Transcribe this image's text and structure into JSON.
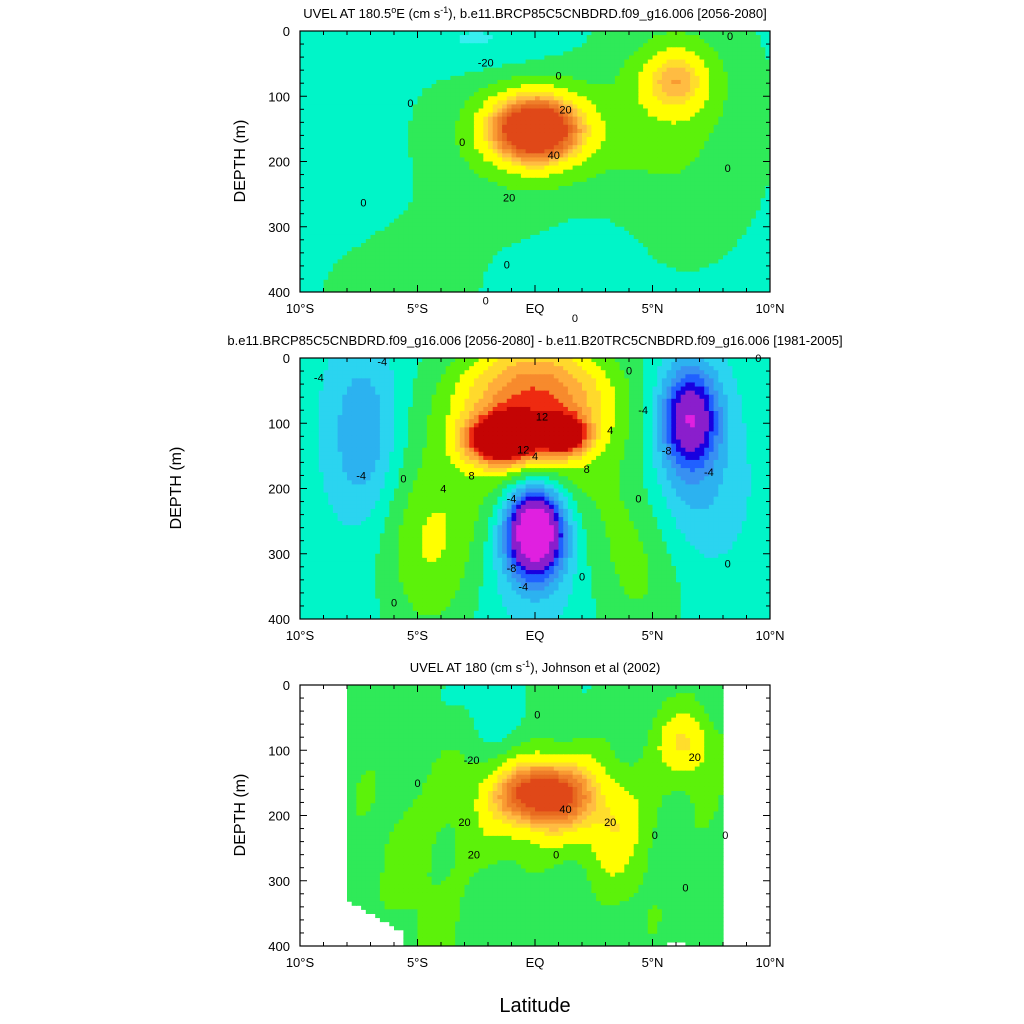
{
  "figure": {
    "xlabel": "Latitude",
    "xticks": [
      {
        "lat": -10,
        "label": "10°S"
      },
      {
        "lat": -5,
        "label": "5°S"
      },
      {
        "lat": 0,
        "label": "EQ"
      },
      {
        "lat": 5,
        "label": "5°N"
      },
      {
        "lat": 10,
        "label": "10°N"
      }
    ],
    "yticks": [
      0,
      100,
      200,
      300,
      400
    ]
  },
  "chart_data": [
    {
      "type": "heatmap",
      "title": "UVEL AT 180.5°E (cm s-1), b.e11.BRCP85C5CNBDRD.f09_g16.006 [2056-2080]",
      "title_parts": {
        "pre": "UVEL AT 180.5",
        "deg": "o",
        "mid": "E (cm s",
        "sup": "-1",
        "post": "), b.e11.BRCP85C5CNBDRD.f09_g16.006 [2056-2080]"
      },
      "xlabel": "Latitude",
      "ylabel": "DEPTH (m)",
      "xlim": [
        -10,
        10
      ],
      "ylim": [
        400,
        0
      ],
      "contour_interval": 10,
      "max": {
        "lat": 0,
        "depth": 150,
        "value": 55
      },
      "contour_labels": [
        "-20",
        "0",
        "0",
        "0",
        "0",
        "0",
        "0",
        "0",
        "0",
        "0",
        "20",
        "40",
        "20"
      ]
    },
    {
      "type": "heatmap",
      "title": "b.e11.BRCP85C5CNBDRD.f09_g16.006 [2056-2080] - b.e11.B20TRC5CNBDRD.f09_g16.006 [1981-2005]",
      "xlabel": "Latitude",
      "ylabel": "DEPTH (m)",
      "xlim": [
        -10,
        10
      ],
      "ylim": [
        400,
        0
      ],
      "contour_interval": 2,
      "max": {
        "lat": -1.5,
        "depth": 125,
        "value": 16
      },
      "min": {
        "lat": 0,
        "depth": 260,
        "value": -18
      },
      "contour_labels": [
        "-4",
        "-4",
        "0",
        "4",
        "8",
        "12",
        "12",
        "4",
        "-4",
        "4",
        "8",
        "0",
        "-4",
        "-8",
        "0",
        "-4",
        "-8",
        "-4",
        "0",
        "0",
        "0",
        "-4",
        "0"
      ]
    },
    {
      "type": "heatmap",
      "title": "UVEL AT 180 (cm s-1), Johnson et al (2002)",
      "title_parts": {
        "pre": "UVEL AT 180 (cm s",
        "sup": "-1",
        "post": "), Johnson et al (2002)"
      },
      "xlabel": "Latitude",
      "ylabel": "DEPTH (m)",
      "xlim": [
        -10,
        10
      ],
      "ylim": [
        400,
        0
      ],
      "data_lat_range": [
        -8,
        8
      ],
      "contour_interval": 10,
      "max": {
        "lat": 0.3,
        "depth": 165,
        "value": 45
      },
      "contour_labels": [
        "0",
        "-20",
        "40",
        "20",
        "20",
        "20",
        "20",
        "0",
        "0",
        "0",
        "0",
        "0"
      ]
    }
  ],
  "colors": {
    "levels_vel": [
      -30,
      -20,
      -10,
      0,
      10,
      20,
      25,
      30,
      35,
      40,
      45,
      50
    ],
    "palette_vel": [
      "#2fd9f2",
      "#37eef0",
      "#00f5c8",
      "#2fea58",
      "#5cf20a",
      "#ffff00",
      "#ffdd2c",
      "#ffbc42",
      "#f99b32",
      "#ef7f2a",
      "#e8691f",
      "#e04818"
    ],
    "levels_diff": [
      -18,
      -14,
      -12,
      -10,
      -8,
      -6,
      -4,
      -2,
      0,
      2,
      4,
      6,
      8,
      10,
      12,
      14
    ],
    "palette_diff": [
      "#e020e0",
      "#8a1ecc",
      "#1800e0",
      "#2060ff",
      "#3890f2",
      "#2cb2f0",
      "#2bd4f0",
      "#00f5c8",
      "#2fea58",
      "#5cf20a",
      "#ffff00",
      "#ffd92c",
      "#ffad3a",
      "#f78a2d",
      "#ee2a10",
      "#c40404"
    ]
  }
}
